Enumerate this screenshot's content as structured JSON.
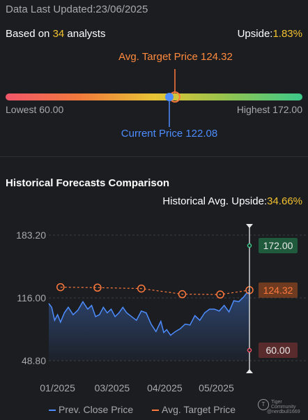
{
  "header": {
    "updated_label": "Data Last Updated:",
    "updated_date": "23/06/2025",
    "based_on_prefix": "Based on ",
    "analyst_count": "34",
    "based_on_suffix": " analysts",
    "upside_label": "Upside:",
    "upside_value": "1.83%"
  },
  "target_range": {
    "avg_label": "Avg. Target Price 124.32",
    "current_label": "Current Price 122.08",
    "lowest_label": "Lowest 60.00",
    "highest_label": "Highest 172.00",
    "low": 60.0,
    "high": 172.0,
    "avg": 124.32,
    "current": 122.08
  },
  "historical": {
    "title": "Historical Forecasts Comparison",
    "upside_label": "Historical Avg. Upside:",
    "upside_value": "34.66%"
  },
  "colors": {
    "prev_close": "#4d8dff",
    "avg_target": "#ff7a3d",
    "high_tag": "#1f5a3c",
    "avg_tag": "#6e3a20",
    "low_tag": "#5a2b2d"
  },
  "chart_data": {
    "type": "line",
    "y_ticks": [
      "183.20",
      "116.00",
      "48.80"
    ],
    "y_tick_values": [
      183.2,
      116.0,
      48.8
    ],
    "ylim": [
      48.8,
      183.2
    ],
    "x_ticks": [
      "01/2025",
      "03/2025",
      "04/2025",
      "05/2025"
    ],
    "x_tick_days": [
      9,
      65,
      119,
      172
    ],
    "x_range_days": [
      0,
      206
    ],
    "series": [
      {
        "name": "Prev. Close Price",
        "days": [
          0,
          3,
          6,
          9,
          12,
          16,
          20,
          25,
          30,
          35,
          40,
          44,
          48,
          52,
          56,
          60,
          64,
          68,
          72,
          76,
          80,
          85,
          90,
          95,
          100,
          105,
          110,
          115,
          118,
          121,
          125,
          130,
          135,
          140,
          145,
          150,
          155,
          160,
          165,
          170,
          175,
          180,
          185,
          190,
          195,
          200,
          203,
          206
        ],
        "values": [
          110,
          106,
          92,
          98,
          90,
          100,
          106,
          98,
          103,
          112,
          104,
          108,
          96,
          98,
          106,
          100,
          104,
          96,
          100,
          106,
          100,
          96,
          92,
          102,
          100,
          88,
          80,
          91,
          79,
          82,
          76,
          80,
          83,
          88,
          87,
          97,
          92,
          100,
          104,
          104,
          102,
          108,
          101,
          113,
          112,
          117,
          121,
          122.08
        ]
      },
      {
        "name": "Avg. Target Price",
        "days": [
          12,
          50,
          95,
          137,
          176,
          206
        ],
        "values": [
          127.5,
          127.0,
          126.0,
          120.0,
          119.6,
          124.32
        ]
      }
    ],
    "tags": [
      {
        "label": "172.00",
        "value": 172.0
      },
      {
        "label": "124.32",
        "value": 124.32
      },
      {
        "label": "60.00",
        "value": 60.0
      }
    ]
  },
  "legend": {
    "prev_close": "Prev. Close Price",
    "avg_target": "Avg. Target Price"
  },
  "watermark": {
    "logo": "T",
    "brand": "Tiger Community",
    "user": "@nerdbull1669"
  }
}
